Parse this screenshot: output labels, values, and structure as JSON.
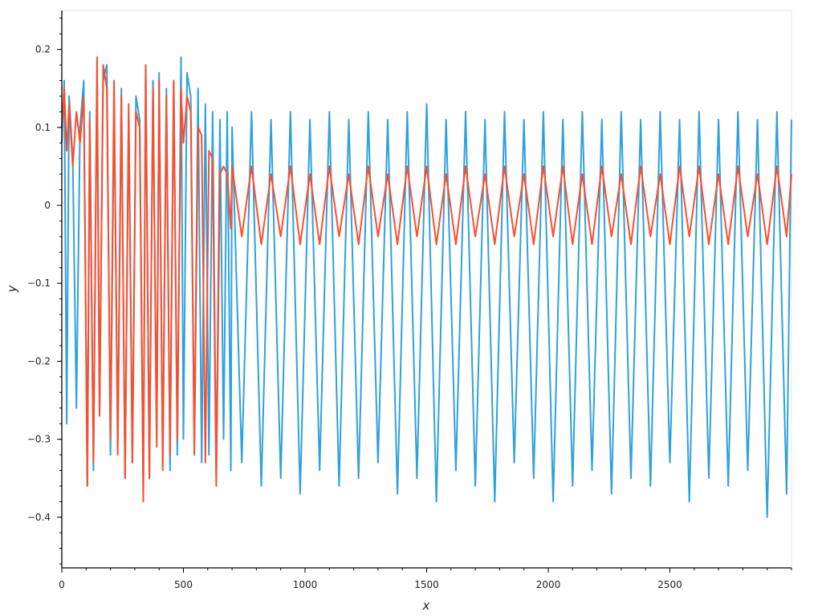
{
  "chart_data": {
    "type": "line",
    "title": "",
    "xlabel": "x",
    "ylabel": "y",
    "xlim": [
      0,
      3000
    ],
    "ylim": [
      -0.465,
      0.25
    ],
    "x_ticks": [
      0,
      500,
      1000,
      1500,
      2000,
      2500
    ],
    "x_tick_labels": [
      "0",
      "500",
      "1000",
      "1500",
      "2000",
      "2500"
    ],
    "y_ticks": [
      -0.4,
      -0.3,
      -0.2,
      -0.1,
      0,
      0.1,
      0.2
    ],
    "y_tick_labels": [
      "−0.4",
      "−0.3",
      "−0.2",
      "−0.1",
      "0",
      "0.1",
      "0.2"
    ],
    "grid": false,
    "legend": "none",
    "series": [
      {
        "color": "#2ea1dc",
        "x": [
          0,
          10,
          20,
          30,
          45,
          60,
          75,
          90,
          105,
          115,
          130,
          145,
          155,
          170,
          185,
          200,
          215,
          230,
          245,
          260,
          275,
          290,
          305,
          320,
          335,
          345,
          360,
          375,
          390,
          400,
          415,
          430,
          445,
          460,
          475,
          490,
          500,
          515,
          530,
          545,
          560,
          575,
          590,
          605,
          620,
          635,
          650,
          665,
          680,
          695,
          700,
          740,
          780,
          820,
          860,
          900,
          940,
          980,
          1020,
          1060,
          1100,
          1140,
          1180,
          1220,
          1260,
          1300,
          1340,
          1380,
          1420,
          1460,
          1500,
          1540,
          1580,
          1620,
          1660,
          1700,
          1740,
          1780,
          1820,
          1860,
          1900,
          1940,
          1980,
          2020,
          2060,
          2100,
          2140,
          2180,
          2220,
          2260,
          2300,
          2340,
          2380,
          2420,
          2460,
          2500,
          2540,
          2580,
          2620,
          2660,
          2700,
          2740,
          2780,
          2820,
          2860,
          2900,
          2940,
          2980,
          3000
        ],
        "y": [
          0.08,
          0.16,
          -0.28,
          0.14,
          0.06,
          -0.26,
          0.1,
          0.16,
          -0.36,
          0.12,
          -0.34,
          0.17,
          -0.27,
          0.16,
          0.18,
          -0.32,
          0.13,
          -0.3,
          0.15,
          -0.35,
          0.12,
          -0.33,
          0.14,
          0.11,
          -0.37,
          0.18,
          -0.35,
          0.16,
          -0.3,
          0.17,
          -0.33,
          0.15,
          -0.34,
          0.16,
          -0.32,
          0.19,
          -0.3,
          0.17,
          0.14,
          -0.31,
          0.15,
          -0.33,
          0.13,
          -0.32,
          0.12,
          -0.35,
          0.11,
          -0.3,
          0.12,
          -0.34,
          0.1,
          -0.33,
          0.12,
          -0.36,
          0.11,
          -0.35,
          0.12,
          -0.37,
          0.11,
          -0.34,
          0.12,
          -0.36,
          0.11,
          -0.35,
          0.12,
          -0.33,
          0.11,
          -0.37,
          0.12,
          -0.35,
          0.13,
          -0.38,
          0.11,
          -0.34,
          0.12,
          -0.36,
          0.11,
          -0.38,
          0.12,
          -0.33,
          0.11,
          -0.35,
          0.12,
          -0.38,
          0.11,
          -0.36,
          0.12,
          -0.34,
          0.11,
          -0.37,
          0.12,
          -0.35,
          0.11,
          -0.36,
          0.12,
          -0.33,
          0.11,
          -0.38,
          0.12,
          -0.35,
          0.11,
          -0.36,
          0.12,
          -0.34,
          0.11,
          -0.4,
          0.12,
          -0.37,
          0.11
        ]
      },
      {
        "color": "#fb4e2d",
        "x": [
          0,
          10,
          20,
          30,
          45,
          60,
          75,
          90,
          105,
          115,
          130,
          145,
          155,
          170,
          185,
          200,
          215,
          230,
          245,
          260,
          275,
          290,
          305,
          320,
          335,
          345,
          360,
          375,
          390,
          400,
          415,
          430,
          445,
          460,
          475,
          490,
          500,
          515,
          530,
          545,
          560,
          575,
          590,
          605,
          620,
          635,
          650,
          665,
          680,
          695,
          700,
          740,
          780,
          820,
          860,
          900,
          940,
          980,
          1020,
          1060,
          1100,
          1140,
          1180,
          1220,
          1260,
          1300,
          1340,
          1380,
          1420,
          1460,
          1500,
          1540,
          1580,
          1620,
          1660,
          1700,
          1740,
          1780,
          1820,
          1860,
          1900,
          1940,
          1980,
          2020,
          2060,
          2100,
          2140,
          2180,
          2220,
          2260,
          2300,
          2340,
          2380,
          2420,
          2460,
          2500,
          2540,
          2580,
          2620,
          2660,
          2700,
          2740,
          2780,
          2820,
          2860,
          2900,
          2940,
          2980,
          3000
        ],
        "y": [
          0.1,
          0.15,
          0.07,
          0.13,
          0.05,
          0.12,
          0.08,
          0.14,
          -0.36,
          0.11,
          -0.33,
          0.19,
          -0.27,
          0.18,
          0.15,
          -0.3,
          0.16,
          -0.32,
          0.14,
          -0.35,
          0.13,
          -0.33,
          0.12,
          0.1,
          -0.38,
          0.18,
          -0.35,
          0.15,
          -0.31,
          0.16,
          -0.34,
          0.14,
          -0.32,
          0.16,
          -0.3,
          0.15,
          0.08,
          0.14,
          0.12,
          -0.32,
          0.1,
          0.09,
          -0.33,
          0.07,
          0.06,
          -0.36,
          0.04,
          0.05,
          0.04,
          -0.03,
          0.05,
          -0.04,
          0.05,
          -0.05,
          0.04,
          -0.04,
          0.05,
          -0.05,
          0.04,
          -0.05,
          0.05,
          -0.04,
          0.04,
          -0.05,
          0.05,
          -0.04,
          0.04,
          -0.05,
          0.05,
          -0.04,
          0.05,
          -0.05,
          0.04,
          -0.05,
          0.05,
          -0.04,
          0.04,
          -0.05,
          0.05,
          -0.04,
          0.04,
          -0.05,
          0.05,
          -0.04,
          0.05,
          -0.05,
          0.04,
          -0.05,
          0.05,
          -0.04,
          0.04,
          -0.05,
          0.05,
          -0.04,
          0.04,
          -0.05,
          0.05,
          -0.04,
          0.05,
          -0.05,
          0.04,
          -0.05,
          0.05,
          -0.04,
          0.04,
          -0.05,
          0.05,
          -0.04,
          0.04
        ]
      }
    ]
  }
}
